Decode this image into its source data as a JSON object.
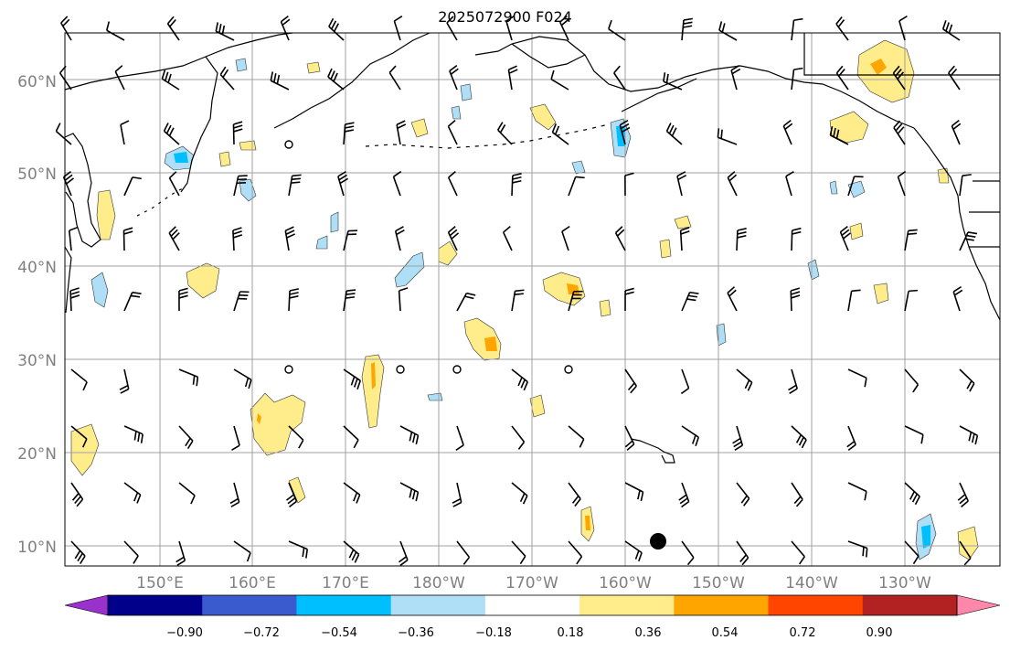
{
  "title": "2025072900 F024",
  "lat_labels": [
    "60°N",
    "50°N",
    "40°N",
    "30°N",
    "20°N",
    "10°N"
  ],
  "lon_labels": [
    "150°E",
    "160°E",
    "170°E",
    "180°W",
    "170°W",
    "160°W",
    "150°W",
    "140°W",
    "130°W"
  ],
  "colorbar": {
    "ticks": [
      "−0.90",
      "−0.72",
      "−0.54",
      "−0.36",
      "−0.18",
      "0.18",
      "0.36",
      "0.54",
      "0.72",
      "0.90"
    ],
    "colors": [
      "#9932cc",
      "#00008b",
      "#3a5bcd",
      "#00bfff",
      "#aedff7",
      "#ffffff",
      "#ffec8b",
      "#ffa500",
      "#ff4500",
      "#b22222",
      "#ff88aa"
    ]
  },
  "colors": {
    "grid": "#a0a0a0",
    "coast": "#000000",
    "barb": "#000000",
    "pos_low": "#ffec8b",
    "pos_mid": "#ffa500",
    "neg_low": "#aedff7",
    "neg_mid": "#00bfff"
  },
  "marker": "storm-center-dot"
}
